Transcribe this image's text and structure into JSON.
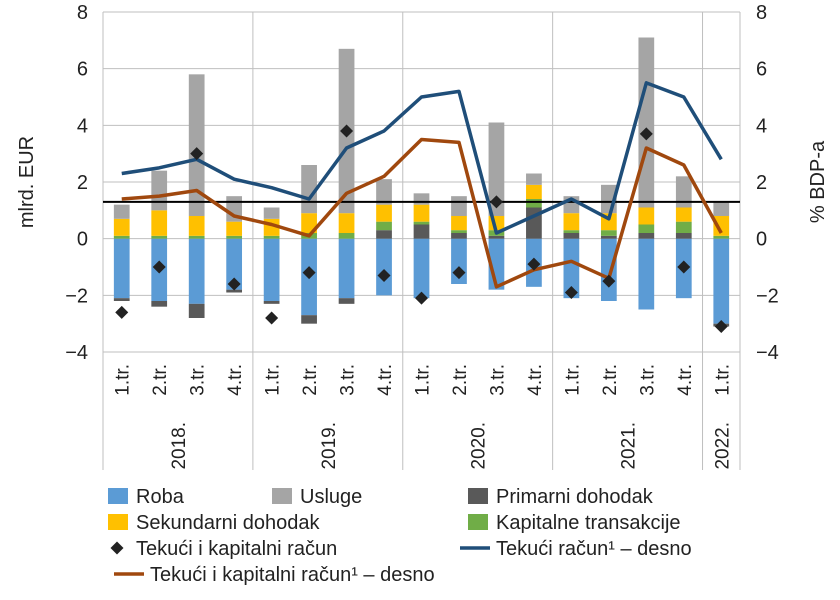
{
  "chart_data": {
    "type": "bar",
    "ylabel_left": "mlrd. EUR",
    "ylabel_right": "% BDP-a",
    "ylim_left": [
      -4,
      8
    ],
    "ylim_right": [
      -4,
      8
    ],
    "yticks_left": [
      "8",
      "6",
      "4",
      "2",
      "0",
      "−2",
      "−4"
    ],
    "yticks_right": [
      "8",
      "6",
      "4",
      "2",
      "0",
      "−2",
      "−4"
    ],
    "categories": [
      "1.tr.",
      "2.tr.",
      "3.tr.",
      "4.tr.",
      "1.tr.",
      "2.tr.",
      "3.tr.",
      "4.tr.",
      "1.tr.",
      "2.tr.",
      "3.tr.",
      "4.tr.",
      "1.tr.",
      "2.tr.",
      "3.tr.",
      "4.tr.",
      "1.tr."
    ],
    "years": [
      {
        "label": "2018.",
        "start": 0,
        "count": 4
      },
      {
        "label": "2019.",
        "start": 4,
        "count": 4
      },
      {
        "label": "2020.",
        "start": 8,
        "count": 4
      },
      {
        "label": "2021.",
        "start": 12,
        "count": 4
      },
      {
        "label": "2022.",
        "start": 16,
        "count": 1
      }
    ],
    "stacked_series": [
      {
        "key": "roba",
        "name": "Roba",
        "color": "#5b9bd5",
        "values": [
          -2.1,
          -2.2,
          -2.3,
          -1.8,
          -2.2,
          -2.7,
          -2.1,
          -2.0,
          -2.1,
          -1.6,
          -1.8,
          -1.7,
          -2.1,
          -2.2,
          -2.5,
          -2.1,
          -3.0
        ]
      },
      {
        "key": "primarni",
        "name": "Primarni dohodak",
        "color": "#595959",
        "values": [
          -0.1,
          -0.2,
          -0.5,
          -0.1,
          -0.1,
          -0.3,
          -0.2,
          0.3,
          0.5,
          0.2,
          0.1,
          1.1,
          0.2,
          0.1,
          0.2,
          0.2,
          -0.1
        ]
      },
      {
        "key": "kapitalne",
        "name": "Kapitalne transakcije",
        "color": "#70ad47",
        "values": [
          0.1,
          0.1,
          0.1,
          0.1,
          0.1,
          0.2,
          0.2,
          0.3,
          0.1,
          0.1,
          0.2,
          0.3,
          0.1,
          0.2,
          0.3,
          0.4,
          0.1
        ]
      },
      {
        "key": "sekundarni",
        "name": "Sekundarni dohodak",
        "color": "#ffc000",
        "values": [
          0.6,
          0.9,
          0.7,
          0.5,
          0.6,
          0.7,
          0.7,
          0.6,
          0.6,
          0.5,
          0.5,
          0.5,
          0.6,
          0.6,
          0.6,
          0.5,
          0.7
        ]
      },
      {
        "key": "usluge",
        "name": "Usluge",
        "color": "#a5a5a5",
        "values": [
          0.5,
          1.4,
          5.0,
          0.9,
          0.4,
          1.7,
          5.8,
          0.9,
          0.4,
          0.7,
          3.3,
          0.4,
          0.6,
          1.0,
          6.0,
          1.1,
          0.5
        ]
      }
    ],
    "markers": {
      "name": "Tekući i kapitalni račun",
      "color": "#222222",
      "values": [
        -2.6,
        -1.0,
        3.0,
        -1.6,
        -2.8,
        -1.2,
        3.8,
        -1.3,
        -2.1,
        -1.2,
        1.3,
        -0.9,
        -1.9,
        -1.5,
        3.7,
        -1.0,
        -3.1
      ]
    },
    "lines": [
      {
        "name": "Tekući račun¹ – desno",
        "color": "#1f4e79",
        "values": [
          2.3,
          2.5,
          2.8,
          2.1,
          1.8,
          1.4,
          3.2,
          3.8,
          5.0,
          5.2,
          0.2,
          0.8,
          1.4,
          0.7,
          5.5,
          5.0,
          2.8
        ]
      },
      {
        "name": "Tekući i kapitalni račun¹ – desno",
        "color": "#a0480e",
        "values": [
          1.4,
          1.5,
          1.7,
          0.8,
          0.5,
          0.1,
          1.6,
          2.2,
          3.5,
          3.4,
          -1.7,
          -1.1,
          -0.8,
          -1.4,
          3.2,
          2.6,
          0.2
        ]
      }
    ],
    "legend_placement": "bottom",
    "legend_rows": [
      [
        "roba",
        "usluge",
        "primarni"
      ],
      [
        "sekundarni",
        "kapitalne"
      ],
      [
        "markers",
        "line0"
      ],
      [
        "line1"
      ]
    ]
  }
}
